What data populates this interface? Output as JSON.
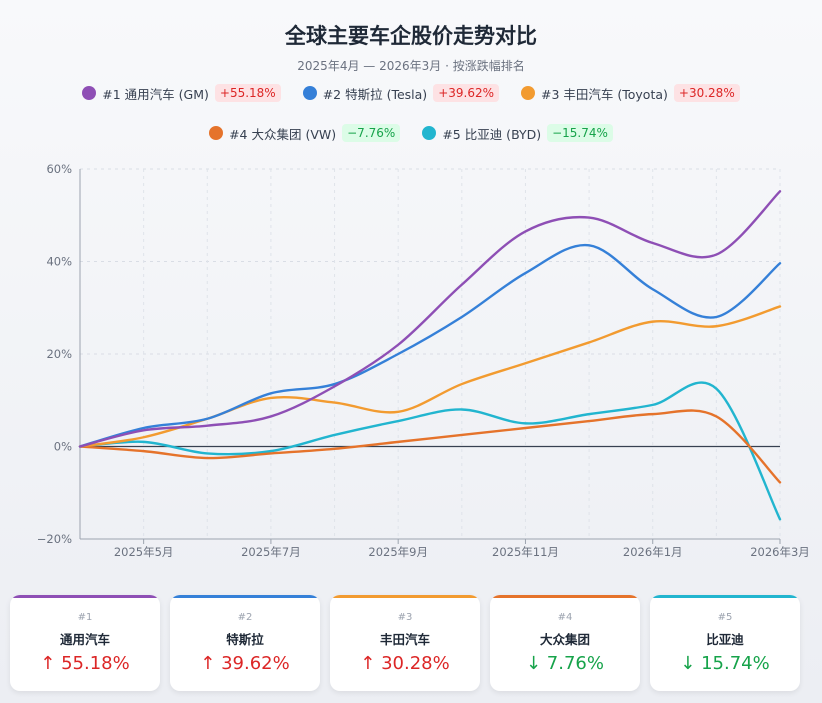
{
  "title": "全球主要车企股价走势对比",
  "subtitle": "2025年4月 — 2026年3月 · 按涨跌幅排名",
  "colors": {
    "gm": "#8e4fb5",
    "tesla": "#3580d8",
    "toyota": "#f29b30",
    "vw": "#e5732b",
    "byd": "#22b5cf",
    "up": "#dc2626",
    "down": "#16a34a"
  },
  "legend": [
    {
      "label": "#1 通用汽车 (GM)",
      "badge": "+55.18%",
      "dir": "up"
    },
    {
      "label": "#2 特斯拉 (Tesla)",
      "badge": "+39.62%",
      "dir": "up"
    },
    {
      "label": "#3 丰田汽车 (Toyota)",
      "badge": "+30.28%",
      "dir": "up"
    },
    {
      "label": "#4 大众集团 (VW)",
      "badge": "−7.76%",
      "dir": "down"
    },
    {
      "label": "#5 比亚迪 (BYD)",
      "badge": "−15.74%",
      "dir": "down"
    }
  ],
  "cards": [
    {
      "rank": "#1",
      "name": "通用汽车",
      "change": "↑ 55.18%",
      "dir": "up"
    },
    {
      "rank": "#2",
      "name": "特斯拉",
      "change": "↑ 39.62%",
      "dir": "up"
    },
    {
      "rank": "#3",
      "name": "丰田汽车",
      "change": "↑ 30.28%",
      "dir": "up"
    },
    {
      "rank": "#4",
      "name": "大众集团",
      "change": "↓ 7.76%",
      "dir": "down"
    },
    {
      "rank": "#5",
      "name": "比亚迪",
      "change": "↓ 15.74%",
      "dir": "down"
    }
  ],
  "chart_data": {
    "type": "line",
    "title": "全球主要车企股价走势对比",
    "xlabel": "",
    "ylabel": "",
    "x": [
      0,
      1,
      2,
      3,
      4,
      5,
      6,
      7,
      8,
      9,
      10,
      11
    ],
    "xlim": [
      0,
      11
    ],
    "x_ticks": [
      {
        "x": 1,
        "label": "2025年5月"
      },
      {
        "x": 3,
        "label": "2025年7月"
      },
      {
        "x": 5,
        "label": "2025年9月"
      },
      {
        "x": 7,
        "label": "2025年11月"
      },
      {
        "x": 9,
        "label": "2026年1月"
      },
      {
        "x": 11,
        "label": "2026年3月"
      }
    ],
    "ylim": [
      -20,
      60
    ],
    "y_ticks": [
      {
        "v": -20,
        "label": "−20%"
      },
      {
        "v": 0,
        "label": "0%"
      },
      {
        "v": 20,
        "label": "20%"
      },
      {
        "v": 40,
        "label": "40%"
      },
      {
        "v": 60,
        "label": "60%"
      }
    ],
    "grid": true,
    "series": [
      {
        "key": "gm",
        "name": "通用汽车 (GM)",
        "values": [
          0,
          3.5,
          4.5,
          6.5,
          13,
          22,
          35,
          46.5,
          49.5,
          44,
          41.5,
          55.18
        ]
      },
      {
        "key": "tesla",
        "name": "特斯拉 (Tesla)",
        "values": [
          0,
          4,
          6,
          11.5,
          13.5,
          20,
          28,
          37.5,
          43.5,
          34,
          28,
          39.62
        ]
      },
      {
        "key": "toyota",
        "name": "丰田汽车 (Toyota)",
        "values": [
          0,
          2,
          6,
          10.5,
          9.5,
          7.5,
          13.5,
          18,
          22.5,
          27,
          26,
          30.28
        ]
      },
      {
        "key": "vw",
        "name": "大众集团 (VW)",
        "values": [
          0,
          -1,
          -2.5,
          -1.5,
          -0.5,
          1,
          2.5,
          4,
          5.5,
          7,
          6.5,
          -7.76
        ]
      },
      {
        "key": "byd",
        "name": "比亚迪 (BYD)",
        "values": [
          0,
          1,
          -1.5,
          -1,
          2.5,
          5.5,
          8,
          5,
          7,
          9,
          12.5,
          -15.74
        ]
      }
    ]
  }
}
